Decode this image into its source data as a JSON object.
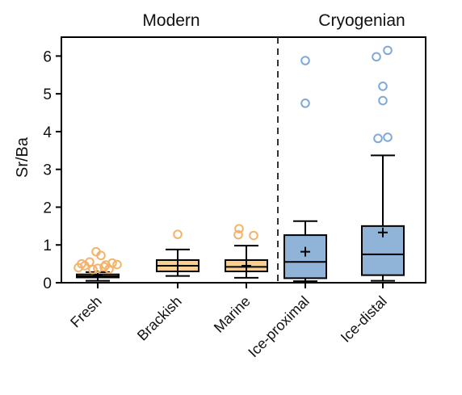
{
  "chart_data": {
    "type": "box",
    "title": "",
    "ylabel": "Sr/Ba",
    "xlabel": "",
    "ylim": [
      0,
      6.5
    ],
    "yticks": [
      0,
      1,
      2,
      3,
      4,
      5,
      6
    ],
    "grid": false,
    "groups": [
      {
        "label": "Modern",
        "categories": [
          "Fresh",
          "Brackish",
          "Marine"
        ]
      },
      {
        "label": "Cryogenian",
        "categories": [
          "Ice-proximal",
          "Ice-distal"
        ]
      }
    ],
    "divider": "dashed line between Modern and Cryogenian",
    "colors": {
      "modern_fill": "#f9cf91",
      "modern_outlier": "#f4b36a",
      "cryogenian_fill": "#8fb4d8",
      "cryogenian_outlier": "#7fa9d6",
      "line": "#000000"
    },
    "boxes": [
      {
        "category": "Fresh",
        "group": "Modern",
        "whisker_low": 0.05,
        "q1": 0.14,
        "median": 0.17,
        "q3": 0.22,
        "whisker_high": 0.28,
        "mean": 0.19,
        "outliers": [
          0.82,
          0.72,
          0.55,
          0.52,
          0.5,
          0.48,
          0.47,
          0.45,
          0.42,
          0.4,
          0.38,
          0.36,
          0.35
        ]
      },
      {
        "category": "Brackish",
        "group": "Modern",
        "whisker_low": 0.18,
        "q1": 0.3,
        "median": 0.45,
        "q3": 0.6,
        "whisker_high": 0.88,
        "mean": 0.45,
        "outliers": [
          1.28
        ]
      },
      {
        "category": "Marine",
        "group": "Modern",
        "whisker_low": 0.13,
        "q1": 0.3,
        "median": 0.42,
        "q3": 0.6,
        "whisker_high": 0.98,
        "mean": 0.45,
        "outliers": [
          1.43,
          1.27,
          1.25
        ]
      },
      {
        "category": "Ice-proximal",
        "group": "Cryogenian",
        "whisker_low": 0.04,
        "q1": 0.12,
        "median": 0.55,
        "q3": 1.26,
        "whisker_high": 1.63,
        "mean": 0.82,
        "outliers": [
          5.88,
          4.75
        ]
      },
      {
        "category": "Ice-distal",
        "group": "Cryogenian",
        "whisker_low": 0.05,
        "q1": 0.2,
        "median": 0.75,
        "q3": 1.5,
        "whisker_high": 3.37,
        "mean": 1.33,
        "outliers": [
          6.15,
          5.98,
          5.2,
          4.82,
          3.85,
          3.82
        ]
      }
    ]
  }
}
